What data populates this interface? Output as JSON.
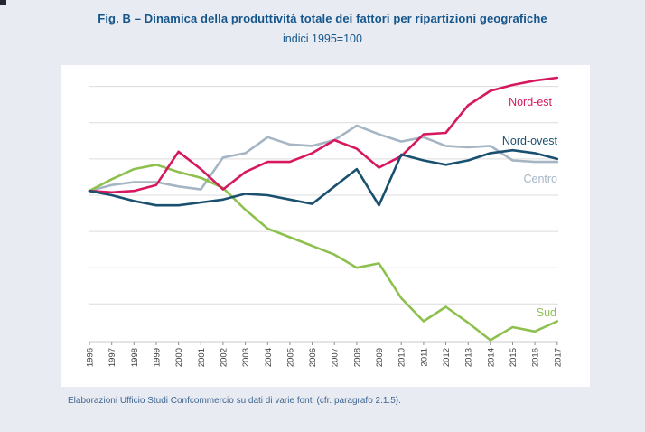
{
  "figure": {
    "title": "Fig. B – Dinamica della produttività totale dei fattori per ripartizioni geografiche",
    "subtitle": "indici 1995=100",
    "source": "Elaborazioni Ufficio Studi Confcommercio su dati di varie fonti (cfr. paragrafo 2.1.5)."
  },
  "colors": {
    "page_background": "#e9ebf2",
    "card_background": "#ffffff",
    "title_text": "#14568c",
    "source_text": "#3d6590"
  },
  "chart_data": {
    "type": "line",
    "title": "Fig. B – Dinamica della produttività totale dei fattori per ripartizioni geografiche",
    "subtitle": "indici 1995=100",
    "xlabel": "",
    "ylabel": "",
    "x": [
      "1996",
      "1997",
      "1998",
      "1999",
      "2000",
      "2001",
      "2002",
      "2003",
      "2004",
      "2005",
      "2006",
      "2007",
      "2008",
      "2009",
      "2010",
      "2011",
      "2012",
      "2013",
      "2014",
      "2015",
      "2016",
      "2017"
    ],
    "series": [
      {
        "name": "Nord-est",
        "color": "#d6185e",
        "values": [
          100.3,
          100.2,
          100.3,
          100.7,
          103.0,
          101.8,
          100.4,
          101.6,
          102.3,
          102.3,
          102.9,
          103.8,
          103.2,
          101.9,
          102.7,
          104.2,
          104.3,
          106.2,
          107.2,
          107.6,
          107.9,
          108.1
        ]
      },
      {
        "name": "Nord-ovest",
        "color": "#1a506f",
        "values": [
          100.3,
          100.0,
          99.6,
          99.3,
          99.3,
          99.5,
          99.7,
          100.1,
          100.0,
          99.7,
          99.4,
          100.6,
          101.8,
          99.3,
          102.8,
          102.4,
          102.1,
          102.4,
          102.9,
          103.1,
          102.9,
          102.5
        ]
      },
      {
        "name": "Centro",
        "color": "#a6b5c4",
        "values": [
          100.3,
          100.7,
          100.9,
          100.9,
          100.6,
          100.4,
          102.6,
          102.9,
          104.0,
          103.5,
          103.4,
          103.8,
          104.8,
          104.2,
          103.7,
          104.0,
          103.4,
          103.3,
          103.4,
          102.4,
          102.3,
          102.3
        ]
      },
      {
        "name": "Sud",
        "color": "#8ec04e",
        "values": [
          100.3,
          101.1,
          101.8,
          102.1,
          101.6,
          101.2,
          100.5,
          99.0,
          97.7,
          97.1,
          96.5,
          95.9,
          95.0,
          95.3,
          92.9,
          91.3,
          92.3,
          91.2,
          90.0,
          90.9,
          90.6,
          91.3
        ]
      }
    ],
    "ylim": [
      89.9,
      108.6
    ],
    "gridlines": [
      92.5,
      95,
      97.5,
      100,
      102.5,
      105,
      107.5
    ],
    "grid": "horizontal-only",
    "y_axis_labels_visible": false,
    "legend_position": "inline-labels-right",
    "grid_color": "#dcdcdc",
    "axis_color": "#c8c8c8",
    "tick_color": "#8f8f8f",
    "tick_label_color": "#3f3f3f"
  }
}
